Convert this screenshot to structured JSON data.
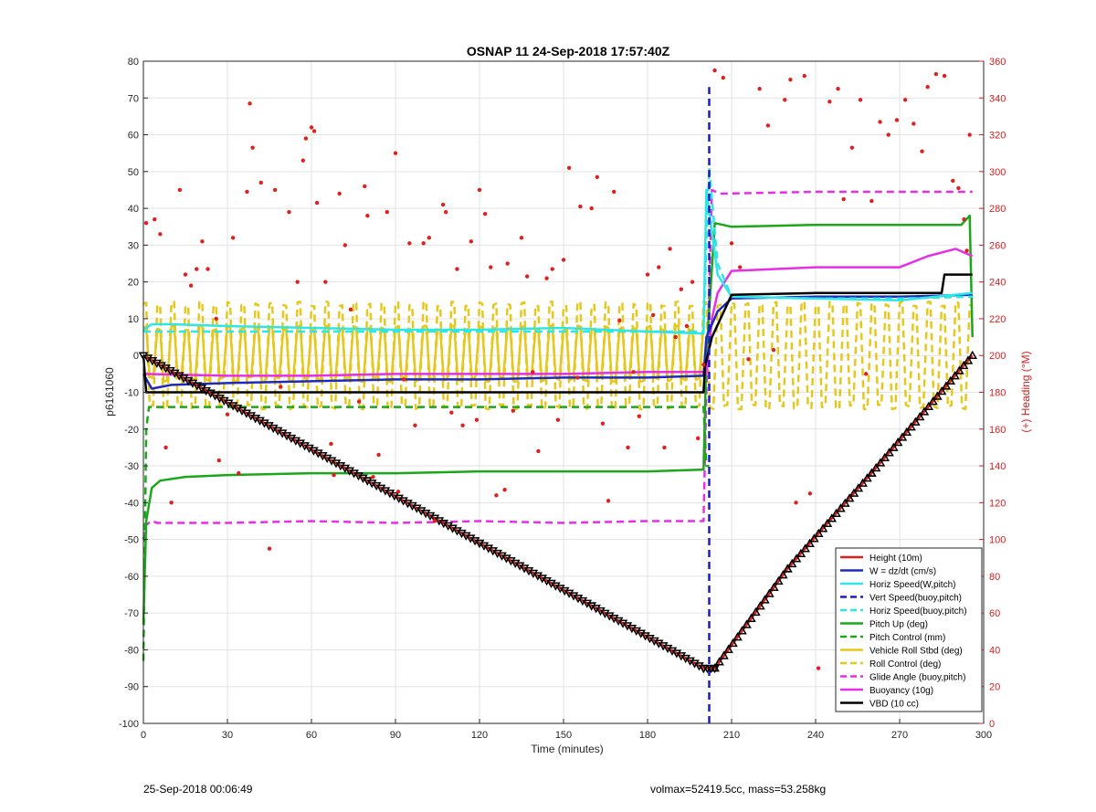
{
  "footer": {
    "timestamp": "25-Sep-2018 00:06:49",
    "info": "volmax=52419.5cc, mass=53.258kg"
  },
  "chart_data": {
    "type": "line",
    "title": "OSNAP 11 24-Sep-2018 17:57:40Z",
    "xlabel": "Time (minutes)",
    "ylabel": "p6161060",
    "y2label": "(+) Heading (°M)",
    "xlim": [
      0,
      300
    ],
    "ylim": [
      -100,
      80
    ],
    "y2lim": [
      0,
      360
    ],
    "xticks": [
      0,
      30,
      60,
      90,
      120,
      150,
      180,
      210,
      240,
      270,
      300
    ],
    "yticks": [
      -100,
      -90,
      -80,
      -70,
      -60,
      -50,
      -40,
      -30,
      -20,
      -10,
      0,
      10,
      20,
      30,
      40,
      50,
      60,
      70,
      80
    ],
    "y2ticks": [
      0,
      20,
      40,
      60,
      80,
      100,
      120,
      140,
      160,
      180,
      200,
      220,
      240,
      260,
      280,
      300,
      320,
      340,
      360
    ],
    "grid": true,
    "legend_position": "bottom-right",
    "colors": {
      "height": "#e0201c",
      "w": "#1f2ab8",
      "horiz_w": "#2ee6e6",
      "vert_buoy": "#1b1bc9",
      "horiz_buoy": "#2ee6e6",
      "pitch": "#1aa81a",
      "pitch_control": "#1aa81a",
      "roll": "#e6c81c",
      "roll_control": "#e6c81c",
      "glide": "#e62ee6",
      "buoyancy": "#e62ee6",
      "vbd": "#000000",
      "heading": "#e0201c",
      "right_axis": "#d42020"
    },
    "series": [
      {
        "name": "Height (10m)",
        "style": "solid",
        "color": "#e0201c",
        "markers": "triangle",
        "x": [
          0,
          40,
          80,
          120,
          160,
          200,
          204,
          230,
          260,
          296
        ],
        "y": [
          0,
          -17,
          -34,
          -51,
          -68,
          -85,
          -85,
          -58,
          -32,
          0
        ]
      },
      {
        "name": "W = dz/dt (cm/s)",
        "style": "solid",
        "color": "#1f2ab8",
        "x": [
          0,
          3,
          10,
          30,
          60,
          90,
          120,
          150,
          180,
          200,
          201,
          205,
          210,
          240,
          270,
          296
        ],
        "y": [
          -5,
          -9,
          -8,
          -7.5,
          -7,
          -6.5,
          -6.5,
          -6,
          -6,
          -5.5,
          5,
          12,
          15.5,
          16,
          16,
          16.5
        ]
      },
      {
        "name": "Horiz Speed(W,pitch)",
        "style": "solid",
        "color": "#2ee6e6",
        "x": [
          0,
          3,
          10,
          30,
          60,
          90,
          120,
          150,
          180,
          200,
          201,
          205,
          210,
          240,
          270,
          296
        ],
        "y": [
          7,
          8.5,
          8.5,
          8,
          7.5,
          7,
          7,
          7.5,
          6.5,
          6,
          45,
          22,
          16,
          15.5,
          15,
          17
        ]
      },
      {
        "name": "Vert Speed(buoy,pitch)",
        "style": "dashed",
        "color": "#1b1bc9",
        "x": [
          202,
          202
        ],
        "y": [
          -100,
          73
        ]
      },
      {
        "name": "Horiz Speed(buoy,pitch)",
        "style": "dashed",
        "color": "#2ee6e6",
        "x": [
          0,
          200,
          201,
          202,
          205,
          210,
          240,
          270,
          296
        ],
        "y": [
          6.5,
          6.5,
          30,
          51,
          25,
          16,
          15.5,
          15.5,
          16
        ]
      },
      {
        "name": "Pitch Up (deg)",
        "style": "solid",
        "color": "#1aa81a",
        "x": [
          0,
          1,
          3,
          6,
          15,
          30,
          60,
          90,
          120,
          150,
          180,
          200,
          201,
          204,
          210,
          240,
          270,
          292,
          295,
          296
        ],
        "y": [
          -73,
          -45,
          -36,
          -34,
          -33,
          -32.5,
          -32,
          -32,
          -31.5,
          -31.5,
          -31.5,
          -31,
          0,
          36,
          35,
          35.5,
          35.5,
          35.5,
          38,
          5
        ]
      },
      {
        "name": "Pitch Control (mm)",
        "style": "dashed",
        "color": "#1aa81a",
        "x": [
          0,
          1,
          2,
          200,
          201,
          202
        ],
        "y": [
          -83,
          -20,
          -14,
          -14,
          -30,
          -30
        ]
      },
      {
        "name": "Vehicle Roll Stbd (deg)",
        "style": "solid",
        "color": "#e6c81c",
        "oscillating": true,
        "x_range": [
          0,
          200
        ],
        "center": 0.5,
        "amplitude": 7,
        "period": 5
      },
      {
        "name": "Roll Control (deg)",
        "style": "dashed",
        "color": "#e6c81c",
        "oscillating": true,
        "x_range": [
          0,
          296
        ],
        "center": 0,
        "amplitude": 14,
        "period": 5
      },
      {
        "name": "Glide Angle (buoy,pitch)",
        "style": "dashed",
        "color": "#e62ee6",
        "x": [
          0,
          1,
          3,
          5,
          30,
          60,
          90,
          120,
          150,
          180,
          200,
          201,
          203,
          206,
          240,
          270,
          296
        ],
        "y": [
          -50,
          -46,
          -45,
          -45.5,
          -45.5,
          -45,
          -45.5,
          -45,
          -45.5,
          -45,
          -45,
          -10,
          45,
          44,
          44.5,
          44.5,
          44.5
        ]
      },
      {
        "name": "Buoyancy (10g)",
        "style": "solid",
        "color": "#e62ee6",
        "x": [
          0,
          30,
          60,
          90,
          120,
          150,
          180,
          200,
          201,
          203,
          205,
          210,
          240,
          270,
          280,
          290,
          296
        ],
        "y": [
          -5,
          -5.5,
          -5.5,
          -5,
          -5,
          -5,
          -4.5,
          -4.5,
          -5,
          10,
          17,
          23,
          24,
          24,
          27,
          29,
          27
        ]
      },
      {
        "name": "VBD (10 cc)",
        "style": "solid",
        "color": "#000000",
        "x": [
          0,
          1,
          2,
          10,
          60,
          120,
          180,
          200,
          200.5,
          203,
          210,
          240,
          270,
          285,
          286,
          296
        ],
        "y": [
          0,
          -10,
          -10,
          -10,
          -10,
          -10,
          -10,
          -10,
          -3,
          5,
          16.5,
          17,
          17,
          17,
          22,
          22
        ]
      }
    ],
    "heading_points": {
      "name": "Heading",
      "axis": "right",
      "color": "#e0201c",
      "x": [
        1,
        4,
        6,
        8,
        10,
        13,
        15,
        17,
        19,
        21,
        23,
        26,
        27,
        30,
        32,
        34,
        37,
        38,
        39,
        42,
        45,
        47,
        49,
        52,
        55,
        57,
        58,
        60,
        61,
        62,
        65,
        67,
        68,
        70,
        72,
        74,
        77,
        79,
        80,
        82,
        84,
        87,
        90,
        91,
        93,
        95,
        97,
        100,
        102,
        104,
        107,
        108,
        110,
        112,
        114,
        117,
        119,
        120,
        122,
        124,
        126,
        129,
        130,
        132,
        135,
        137,
        139,
        141,
        144,
        146,
        148,
        150,
        152,
        155,
        156,
        160,
        162,
        164,
        166,
        168,
        170,
        173,
        175,
        177,
        180,
        182,
        184,
        186,
        188,
        190,
        192,
        194,
        196,
        198,
        200,
        204,
        207,
        210,
        213,
        216,
        220,
        223,
        225,
        229,
        231,
        233,
        236,
        238,
        241,
        245,
        248,
        250,
        253,
        256,
        258,
        260,
        263,
        266,
        269,
        272,
        275,
        278,
        280,
        283,
        286,
        289,
        291,
        293,
        294,
        295
      ],
      "y": [
        272,
        274,
        266,
        150,
        120,
        290,
        244,
        238,
        247,
        262,
        247,
        220,
        143,
        168,
        264,
        136,
        289,
        337,
        313,
        294,
        95,
        290,
        183,
        278,
        240,
        306,
        318,
        324,
        322,
        283,
        240,
        152,
        135,
        288,
        260,
        225,
        175,
        292,
        276,
        134,
        146,
        278,
        310,
        126,
        187,
        261,
        162,
        261,
        264,
        110,
        282,
        278,
        169,
        247,
        162,
        262,
        165,
        290,
        277,
        248,
        124,
        127,
        250,
        170,
        264,
        243,
        191,
        148,
        242,
        247,
        165,
        252,
        302,
        188,
        281,
        280,
        297,
        163,
        121,
        289,
        219,
        150,
        191,
        167,
        244,
        222,
        248,
        150,
        258,
        210,
        236,
        216,
        240,
        155,
        195,
        355,
        351,
        261,
        248,
        198,
        345,
        325,
        203,
        339,
        350,
        120,
        352,
        125,
        30,
        338,
        345,
        285,
        313,
        339,
        190,
        284,
        327,
        320,
        328,
        339,
        326,
        311,
        346,
        353,
        352,
        295,
        291,
        274,
        257,
        320
      ]
    }
  }
}
